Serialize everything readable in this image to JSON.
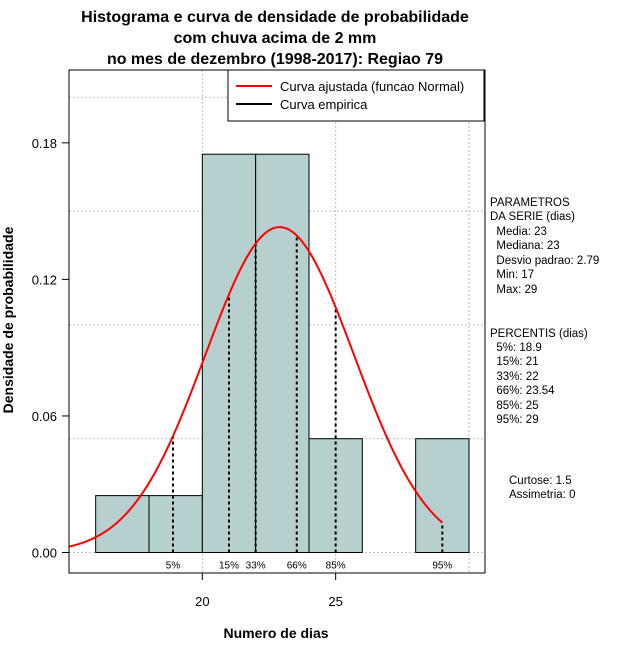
{
  "chart_data": {
    "type": "bar",
    "title_lines": [
      "Histograma e curva de densidade de probabilidade",
      "com chuva acima de 2 mm",
      "no mes de dezembro (1998-2017): Regiao 79"
    ],
    "xlabel": "Numero de dias",
    "ylabel": "Densidade de probabilidade",
    "xlim": [
      15.0,
      30.6
    ],
    "ylim": [
      -0.009,
      0.212
    ],
    "xticks": [
      20,
      25
    ],
    "yticks": [
      0.0,
      0.06,
      0.12,
      0.18
    ],
    "ytick_labels": [
      "0.00",
      "0.06",
      "0.12",
      "0.18"
    ],
    "vgrid": [
      20,
      25,
      30
    ],
    "hgrid": [
      0.0,
      0.05,
      0.1,
      0.15,
      0.2
    ],
    "bins": [
      {
        "start": 16,
        "end": 18,
        "density": 0.025
      },
      {
        "start": 18,
        "end": 20,
        "density": 0.025
      },
      {
        "start": 20,
        "end": 22,
        "density": 0.175
      },
      {
        "start": 22,
        "end": 24,
        "density": 0.175
      },
      {
        "start": 24,
        "end": 26,
        "density": 0.05
      },
      {
        "start": 26,
        "end": 28,
        "density": 0.0
      },
      {
        "start": 28,
        "end": 30,
        "density": 0.05
      }
    ],
    "fitted_curve": {
      "name": "Curva ajustada (funcao Normal)",
      "mean": 22.9,
      "sd": 2.79,
      "x_range": [
        15.0,
        29.0
      ],
      "color": "#ff0000"
    },
    "empirical_curve": {
      "name": "Curva empirica",
      "color": "#000000"
    },
    "percentile_lines": [
      {
        "label": "5%",
        "value": 18.9
      },
      {
        "label": "15%",
        "value": 21
      },
      {
        "label": "33%",
        "value": 22
      },
      {
        "label": "66%",
        "value": 23.54
      },
      {
        "label": "85%",
        "value": 25
      },
      {
        "label": "95%",
        "value": 29
      }
    ],
    "legend": {
      "position": "top-right",
      "entries": [
        "Curva ajustada (funcao Normal)",
        "Curva empirica"
      ]
    },
    "bar_color": "#b6cfcf"
  },
  "side_panel": {
    "parametros": [
      "PARAMETROS",
      "DA SERIE (dias)",
      "  Media: 23",
      "  Mediana: 23",
      "  Desvio padrao: 2.79",
      "  Min: 17",
      "  Max: 29"
    ],
    "percentis": [
      "PERCENTIS (dias)",
      "  5%: 18.9",
      "  15%: 21",
      "  33%: 22",
      "  66%: 23.54",
      "  85%: 25",
      "  95%: 29"
    ],
    "stats": [
      "Curtose: 1.5",
      "Assimetria: 0"
    ]
  },
  "colors": {
    "bar": "#b6cfcf",
    "fitted": "#ff0000",
    "grid": "#bbbbbb"
  }
}
